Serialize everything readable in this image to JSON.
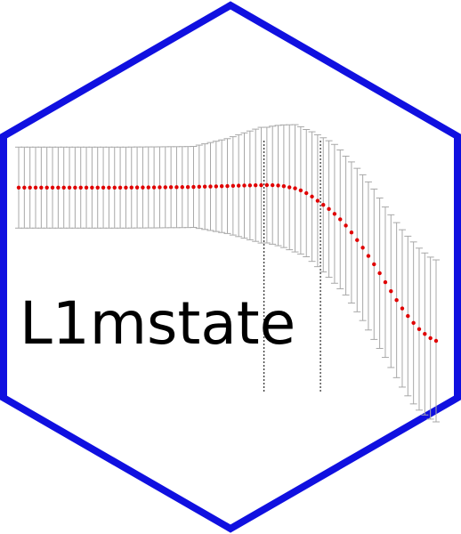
{
  "logo": {
    "package_name": "L1mstate",
    "colors": {
      "hex_border": "#1010e0",
      "background": "#ffffff",
      "point": "#e00000",
      "error_bar": "#a8a8a8",
      "reference_line": "#000000",
      "text": "#000000"
    }
  },
  "chart_data": {
    "type": "scatter",
    "title": "",
    "xlabel": "",
    "ylabel": "",
    "error_bars": true,
    "grid": false,
    "reference_lines_x": [
      44.5,
      54.5
    ],
    "x": [
      1,
      2,
      3,
      4,
      5,
      6,
      7,
      8,
      9,
      10,
      11,
      12,
      13,
      14,
      15,
      16,
      17,
      18,
      19,
      20,
      21,
      22,
      23,
      24,
      25,
      26,
      27,
      28,
      29,
      30,
      31,
      32,
      33,
      34,
      35,
      36,
      37,
      38,
      39,
      40,
      41,
      42,
      43,
      44,
      45,
      46,
      47,
      48,
      49,
      50,
      51,
      52,
      53,
      54,
      55,
      56,
      57,
      58,
      59,
      60,
      61,
      62,
      63,
      64,
      65,
      66,
      67,
      68,
      69,
      70,
      71,
      72,
      73,
      74,
      75
    ],
    "y": [
      0,
      0,
      0,
      0,
      0,
      0,
      0,
      0,
      0,
      0,
      0,
      0,
      0,
      0,
      0,
      0,
      0,
      0,
      0,
      0,
      0.01,
      0.02,
      0.02,
      0.03,
      0.03,
      0.04,
      0.05,
      0.06,
      0.06,
      0.07,
      0.08,
      0.1,
      0.12,
      0.14,
      0.16,
      0.18,
      0.2,
      0.22,
      0.25,
      0.28,
      0.3,
      0.32,
      0.34,
      0.35,
      0.36,
      0.35,
      0.3,
      0.2,
      0.05,
      -0.1,
      -0.4,
      -0.8,
      -1.3,
      -1.9,
      -2.5,
      -3.1,
      -3.8,
      -4.6,
      -5.5,
      -6.5,
      -7.6,
      -8.7,
      -9.9,
      -11.1,
      -12.4,
      -13.7,
      -15.0,
      -16.3,
      -17.5,
      -18.6,
      -19.6,
      -20.5,
      -21.2,
      -21.8,
      -22.2
    ],
    "error_half_width": [
      7,
      7,
      7,
      7,
      7,
      7,
      7,
      7,
      7,
      7,
      7,
      7,
      7,
      7,
      7,
      7,
      7,
      7,
      7,
      7,
      7,
      7,
      7,
      7,
      7,
      7,
      7,
      7,
      7,
      7,
      7,
      7,
      7.2,
      7.4,
      7.6,
      7.8,
      8,
      8.2,
      8.5,
      8.8,
      9.1,
      9.4,
      9.7,
      10,
      10,
      10.2,
      10.4,
      10.6,
      10.8,
      11,
      11,
      11,
      11.2,
      11.4,
      11.6,
      11.8,
      12,
      12,
      12,
      12.2,
      12.4,
      12.6,
      12.8,
      13,
      13,
      13,
      13.2,
      13.4,
      13.6,
      13.8,
      14,
      14,
      14,
      14,
      14
    ]
  }
}
